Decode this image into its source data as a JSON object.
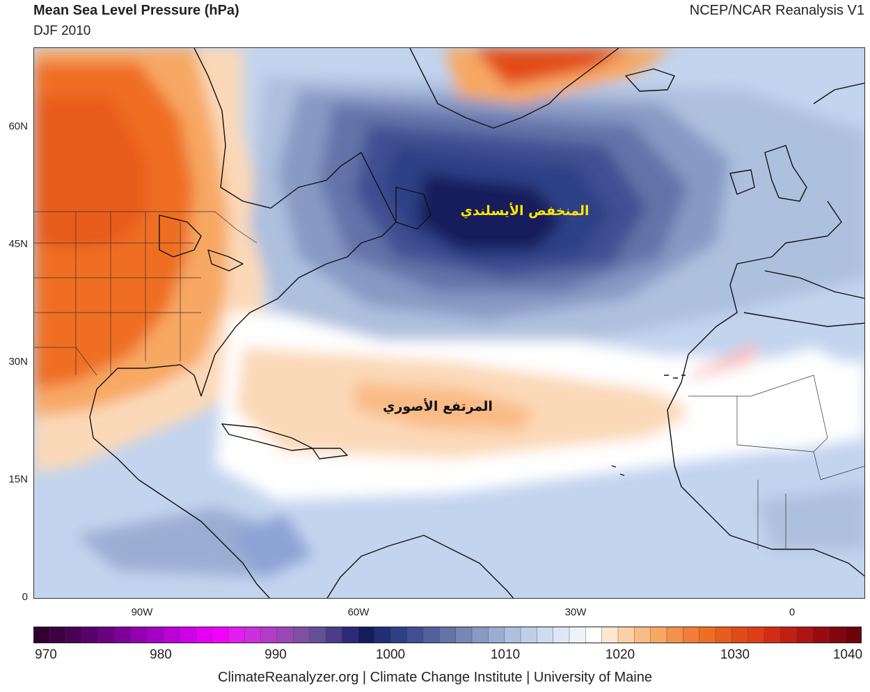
{
  "header": {
    "title": "Mean Sea Level Pressure (hPa)",
    "subtitle": "DJF 2010",
    "source": "NCEP/NCAR Reanalysis V1"
  },
  "map": {
    "lat_labels": [
      "60N",
      "45N",
      "30N",
      "15N",
      "0"
    ],
    "lon_labels": [
      "90W",
      "60W",
      "30W",
      "0"
    ],
    "annotations": {
      "icelandic_low": "المنخفض الأيسلندي",
      "azores_high": "المرتفع الأصوري"
    },
    "colors": {
      "low_core": "#141c5c",
      "low_mid": "#3f4f92",
      "low_outer": "#8da3d4",
      "neutral": "#ffffff",
      "high_light": "#fbd9b8",
      "high_mid": "#f7a864",
      "high_strong": "#ef6e24",
      "high_max": "#de3d15",
      "coast": "#111111",
      "low_label": "#ffe600",
      "high_label": "#111111"
    }
  },
  "colorbar": {
    "tick_labels": [
      "970",
      "980",
      "990",
      "1000",
      "1010",
      "1020",
      "1030",
      "1040"
    ],
    "colors": [
      "#30002f",
      "#3d0041",
      "#4a0057",
      "#5a006c",
      "#6b0083",
      "#7e009a",
      "#9200b0",
      "#a600c4",
      "#bb00d8",
      "#cf00e8",
      "#e300f5",
      "#f200ff",
      "#e41cf0",
      "#cc2fdd",
      "#b23cc8",
      "#9947b5",
      "#7f4fa3",
      "#654f95",
      "#4b3d8b",
      "#2b2a7c",
      "#141c5c",
      "#1f2e75",
      "#2d3f86",
      "#3f4f92",
      "#52619d",
      "#6373a9",
      "#7587b6",
      "#8899c4",
      "#9badd2",
      "#adc0de",
      "#bdd0e8",
      "#cddcee",
      "#dde7f4",
      "#edf3f9",
      "#ffffff",
      "#fde7d0",
      "#fbd0a6",
      "#f9bb86",
      "#f7a864",
      "#f4924b",
      "#f27d38",
      "#ef6e24",
      "#e85c1d",
      "#e24b18",
      "#de3d15",
      "#d22d14",
      "#c02012",
      "#ac1511",
      "#970c0f",
      "#82060d",
      "#6d030b"
    ]
  },
  "footer": "ClimateReanalyzer.org | Climate Change Institute | University of Maine"
}
